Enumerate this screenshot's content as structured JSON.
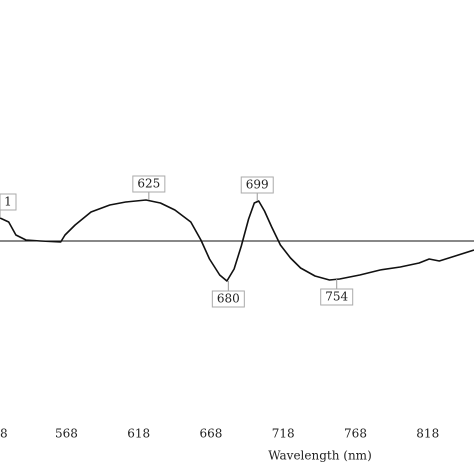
{
  "chart_data": {
    "type": "line",
    "x_label": "Wavelength (nm)",
    "x": [
      522,
      528,
      533,
      540,
      550,
      564,
      567,
      574,
      585,
      598,
      609,
      623,
      633,
      643,
      654,
      661,
      667,
      674,
      679,
      684,
      689,
      694,
      698,
      701,
      705,
      710,
      716,
      723,
      730,
      740,
      750,
      757,
      771,
      785,
      799,
      812,
      819,
      826,
      837,
      850
    ],
    "series": [
      {
        "color": "#111111",
        "values": [
          0.23,
          0.19,
          0.06,
          0.01,
          0,
          -0.01,
          0.06,
          0.16,
          0.29,
          0.36,
          0.39,
          0.41,
          0.38,
          0.31,
          0.19,
          0.01,
          -0.18,
          -0.34,
          -0.4,
          -0.28,
          -0.05,
          0.22,
          0.38,
          0.4,
          0.3,
          0.14,
          -0.04,
          -0.17,
          -0.27,
          -0.35,
          -0.39,
          -0.38,
          -0.34,
          -0.29,
          -0.26,
          -0.22,
          -0.18,
          -0.2,
          -0.15,
          -0.09
        ]
      }
    ],
    "xlim": [
      522,
      850
    ],
    "ylim": [
      -1.69,
      2.41
    ],
    "xticks": [
      {
        "value": 518,
        "label": "8"
      },
      568,
      618,
      668,
      718,
      768,
      818
    ],
    "hline": 0,
    "annotations": [
      {
        "text": "1",
        "x": 522,
        "y": 0.23
      },
      {
        "text": "625",
        "x": 625,
        "y": 0.41
      },
      {
        "text": "680",
        "x": 680,
        "y": -0.4
      },
      {
        "text": "699",
        "x": 700,
        "y": 0.4
      },
      {
        "text": "754",
        "x": 755,
        "y": -0.38
      }
    ]
  }
}
